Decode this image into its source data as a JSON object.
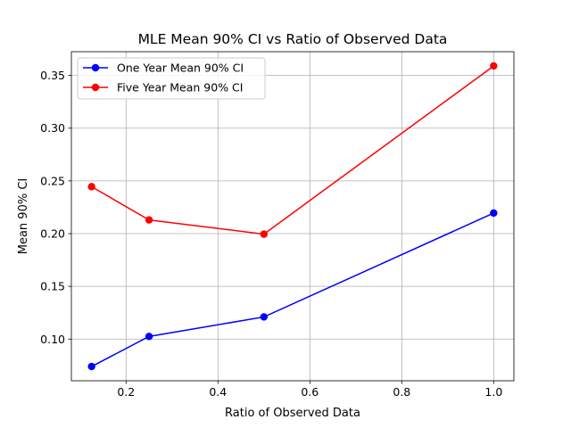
{
  "chart_data": {
    "type": "line",
    "title": "MLE Mean 90% CI vs Ratio of Observed Data",
    "xlabel": "Ratio of Observed Data",
    "ylabel": "Mean 90% CI",
    "xlim": [
      0.081,
      1.044
    ],
    "ylim": [
      0.0605,
      0.3725
    ],
    "xticks": [
      0.2,
      0.4,
      0.6,
      0.8,
      1.0
    ],
    "xtick_labels": [
      "0.2",
      "0.4",
      "0.6",
      "0.8",
      "1.0"
    ],
    "yticks": [
      0.1,
      0.15,
      0.2,
      0.25,
      0.3,
      0.35
    ],
    "ytick_labels": [
      "0.10",
      "0.15",
      "0.20",
      "0.25",
      "0.30",
      "0.35"
    ],
    "grid": true,
    "legend_position": "upper-left",
    "x": [
      0.125,
      0.25,
      0.5,
      1.0
    ],
    "series": [
      {
        "name": "One Year Mean 90% CI",
        "color": "#0000ff",
        "marker": "circle",
        "values": [
          0.074,
          0.1025,
          0.121,
          0.2195
        ]
      },
      {
        "name": "Five Year Mean 90% CI",
        "color": "#ff0000",
        "marker": "circle",
        "values": [
          0.2445,
          0.213,
          0.1995,
          0.359
        ]
      }
    ]
  }
}
